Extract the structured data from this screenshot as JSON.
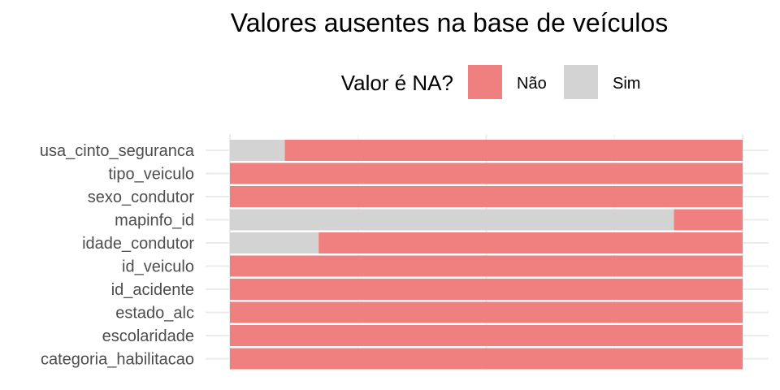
{
  "chart_data": {
    "type": "bar",
    "orientation": "horizontal",
    "stacked": "proportion",
    "title": "Valores ausentes na base de veículos",
    "xlabel": "",
    "ylabel": "",
    "xlim": [
      0,
      1
    ],
    "grid": true,
    "legend": {
      "title": "Valor é NA?",
      "placement": "top"
    },
    "categories": [
      "usa_cinto_seguranca",
      "tipo_veiculo",
      "sexo_condutor",
      "mapinfo_id",
      "idade_condutor",
      "id_veiculo",
      "id_acidente",
      "estado_alc",
      "escolaridade",
      "categoria_habilitacao"
    ],
    "series": [
      {
        "name": "Sim",
        "color": "#d3d3d3",
        "values": [
          0.107,
          0,
          0,
          0.866,
          0.173,
          0,
          0,
          0,
          0,
          0
        ]
      },
      {
        "name": "Não",
        "color": "#f08080",
        "values": [
          0.893,
          1,
          1,
          0.134,
          0.827,
          1,
          1,
          1,
          1,
          1
        ]
      }
    ]
  }
}
